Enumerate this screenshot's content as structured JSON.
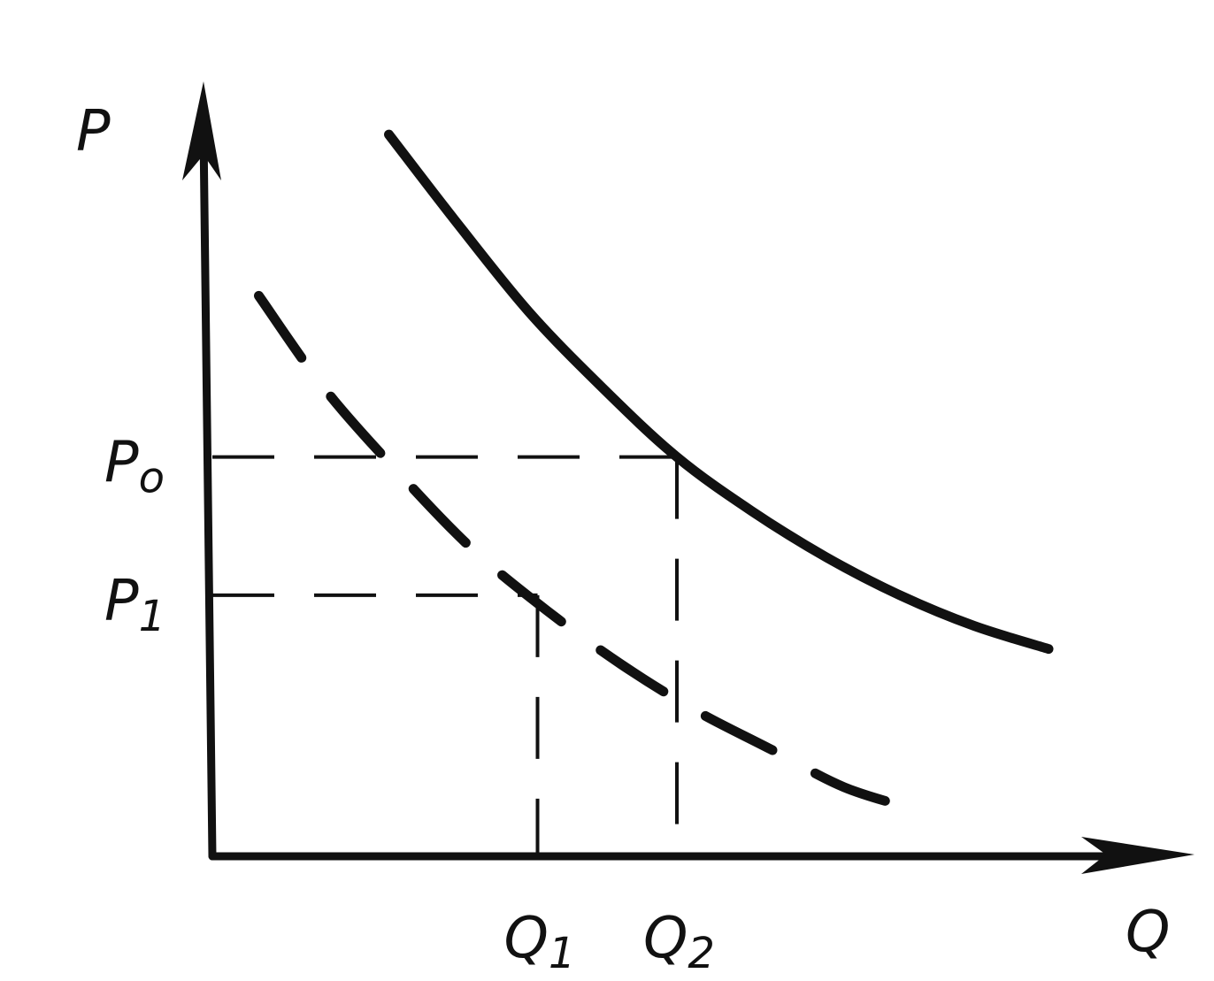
{
  "chart_data": {
    "type": "line",
    "title": "",
    "xlabel": "Q",
    "ylabel": "P",
    "grid": false,
    "legend": "none",
    "xlim": [
      0,
      10
    ],
    "ylim": [
      0,
      10
    ],
    "series": [
      {
        "style": "solid",
        "x": [
          1.9,
          2.6,
          3.4,
          4.2,
          5.0,
          5.8,
          6.6,
          7.4,
          8.2,
          9.0
        ],
        "y": [
          9.4,
          8.3,
          7.1,
          6.1,
          5.2,
          4.5,
          3.9,
          3.4,
          3.0,
          2.7
        ]
      },
      {
        "style": "dashed",
        "x": [
          0.5,
          1.2,
          2.0,
          2.8,
          3.6,
          4.4,
          5.2,
          6.0,
          6.8,
          7.6
        ],
        "y": [
          7.3,
          6.1,
          5.0,
          4.0,
          3.2,
          2.5,
          1.9,
          1.4,
          0.9,
          0.6
        ]
      }
    ],
    "reference_lines": {
      "P0": 5.2,
      "P1": 3.4,
      "Q1": 3.5,
      "Q2": 5.0
    },
    "tick_labels": {
      "y": [
        {
          "id": "P0",
          "main": "P",
          "sub": "o"
        },
        {
          "id": "P1",
          "main": "P",
          "sub": "1"
        }
      ],
      "x": [
        {
          "id": "Q1",
          "main": "Q",
          "sub": "1"
        },
        {
          "id": "Q2",
          "main": "Q",
          "sub": "2"
        }
      ]
    },
    "colors": {
      "ink": "#111111",
      "background": "#ffffff"
    }
  }
}
